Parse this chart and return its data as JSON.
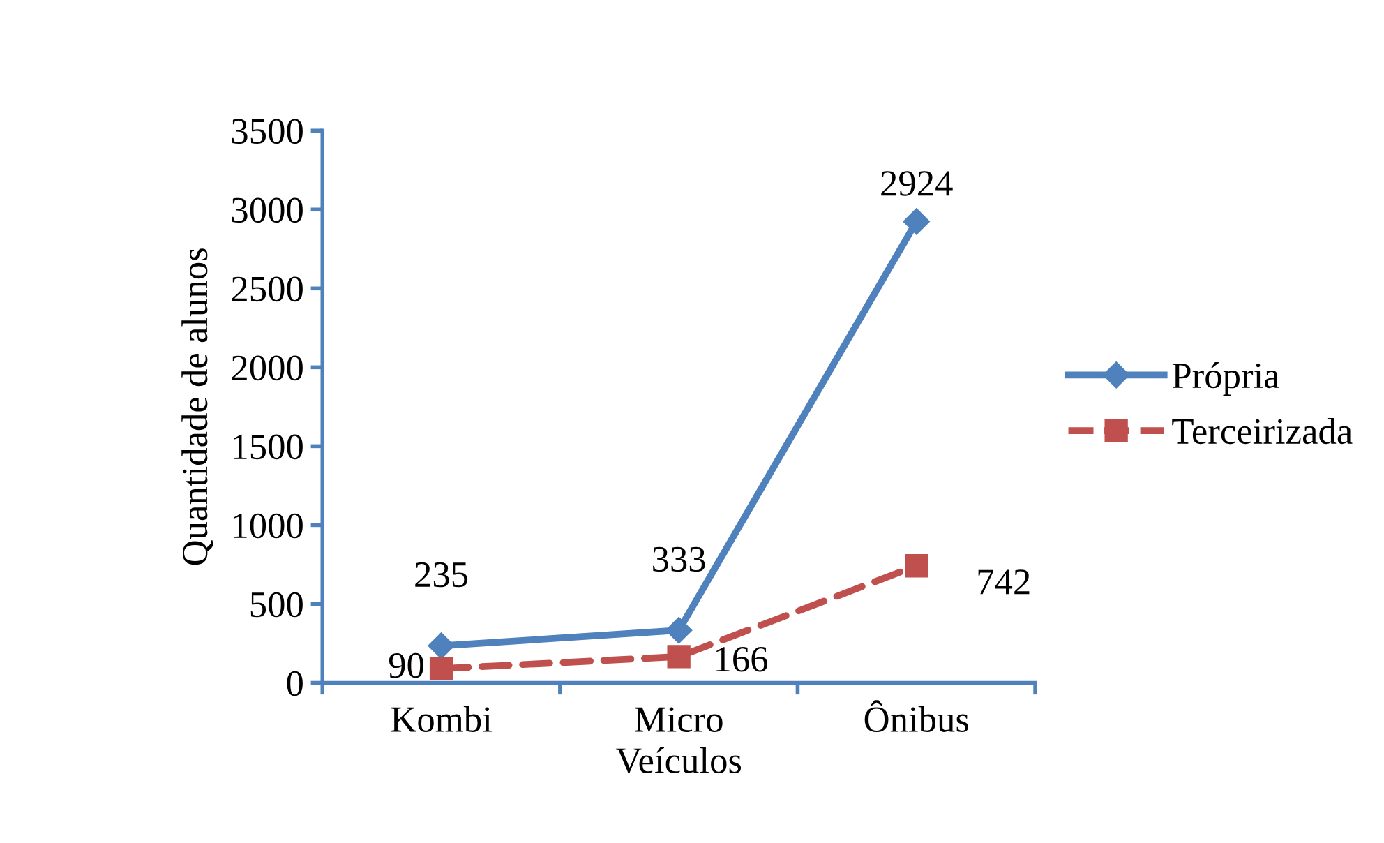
{
  "chart_data": {
    "type": "line",
    "xlabel": "Veículos",
    "ylabel": "Quantidade de alunos",
    "categories": [
      "Kombi",
      "Micro",
      "Ônibus"
    ],
    "series": [
      {
        "name": "Própria",
        "color": "#4f81bd",
        "values": [
          235,
          333,
          2924
        ],
        "marker": "diamond",
        "line_style": "solid"
      },
      {
        "name": "Terceirizada",
        "color": "#c0504d",
        "values": [
          90,
          166,
          742
        ],
        "marker": "square",
        "line_style": "dashed"
      }
    ],
    "ylim": [
      0,
      3500
    ],
    "yticks": [
      0,
      500,
      1000,
      1500,
      2000,
      2500,
      3000,
      3500
    ],
    "grid": false,
    "legend": "right",
    "data_labels": true
  }
}
